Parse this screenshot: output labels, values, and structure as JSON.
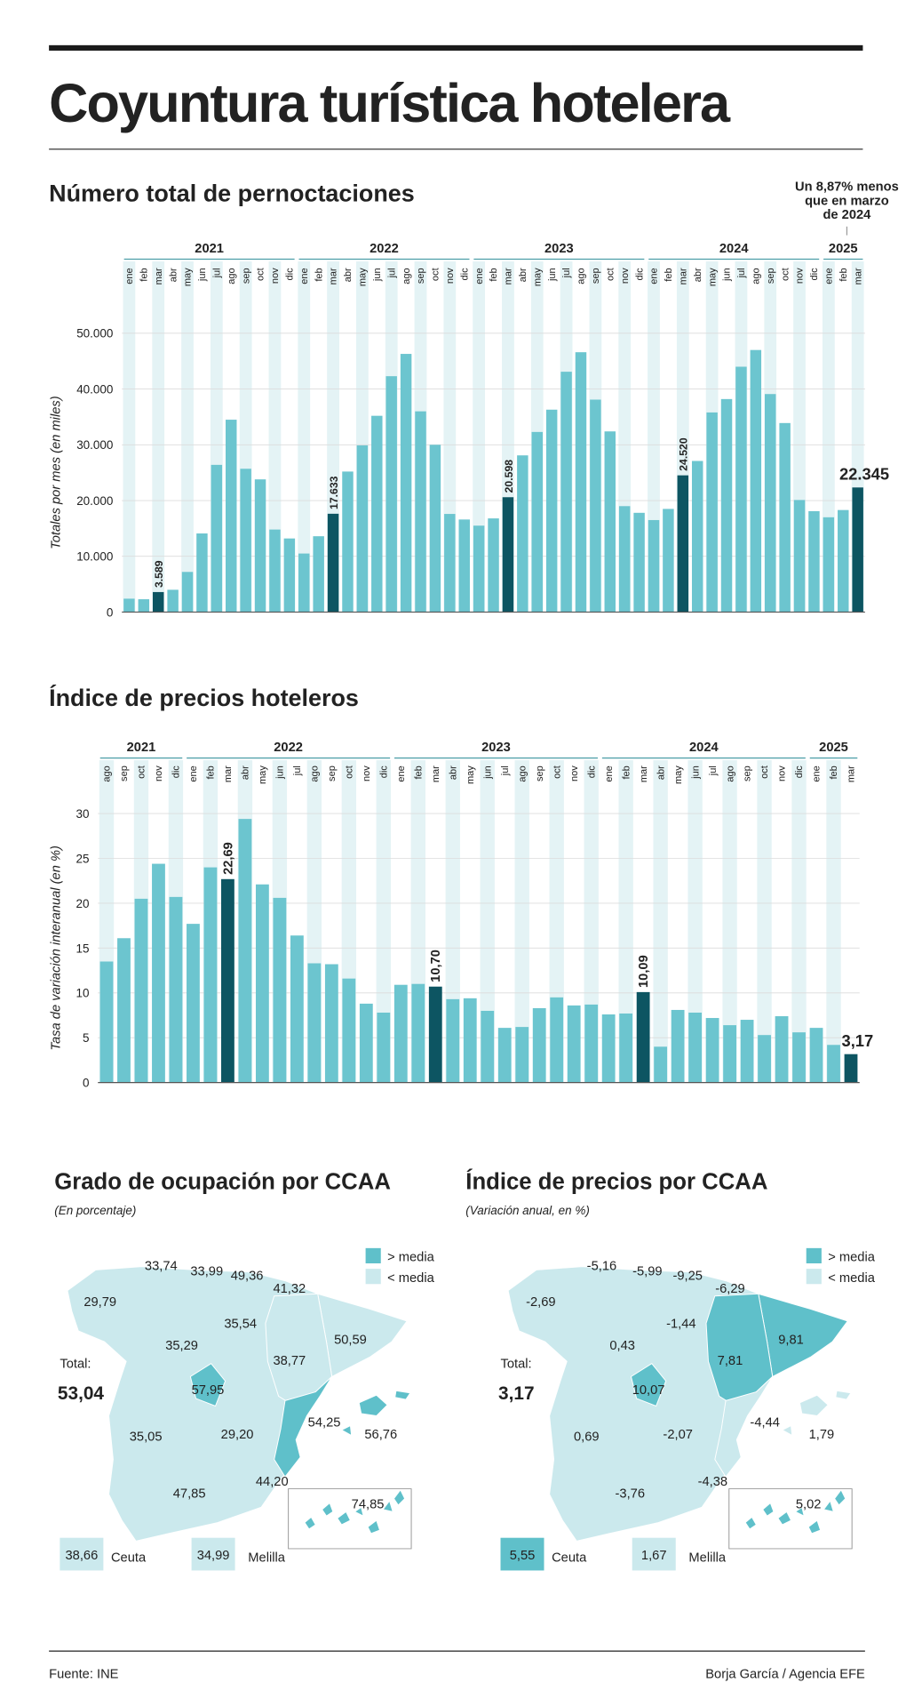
{
  "header": {
    "title": "Coyuntura turística hotelera"
  },
  "chart_data": [
    {
      "type": "bar",
      "title": "Número total de pernoctaciones",
      "y_label": "Totales por mes (en miles)",
      "annotation": [
        "Un 8,87% menos",
        "que en marzo",
        "de 2024"
      ],
      "groups": [
        {
          "label": "2021",
          "categories": [
            "ene",
            "feb",
            "mar",
            "abr",
            "may",
            "jun",
            "jul",
            "ago",
            "sep",
            "oct",
            "nov",
            "dic"
          ]
        },
        {
          "label": "2022",
          "categories": [
            "ene",
            "feb",
            "mar",
            "abr",
            "may",
            "jun",
            "jul",
            "ago",
            "sep",
            "oct",
            "nov",
            "dic"
          ]
        },
        {
          "label": "2023",
          "categories": [
            "ene",
            "feb",
            "mar",
            "abr",
            "may",
            "jun",
            "jul",
            "ago",
            "sep",
            "oct",
            "nov",
            "dic"
          ]
        },
        {
          "label": "2024",
          "categories": [
            "ene",
            "feb",
            "mar",
            "abr",
            "may",
            "jun",
            "jul",
            "ago",
            "sep",
            "oct",
            "nov",
            "dic"
          ]
        },
        {
          "label": "2025",
          "categories": [
            "ene",
            "feb",
            "mar"
          ]
        }
      ],
      "values": [
        2400,
        2300,
        3589,
        4000,
        7200,
        14100,
        26400,
        34500,
        25700,
        23800,
        14800,
        13200,
        10500,
        13600,
        17633,
        25200,
        29900,
        35200,
        42300,
        46300,
        36000,
        30000,
        17600,
        16600,
        15500,
        16800,
        20598,
        28100,
        32300,
        36300,
        43100,
        46600,
        38100,
        32400,
        19000,
        17800,
        16500,
        18500,
        24520,
        27100,
        35800,
        38200,
        44000,
        47000,
        39100,
        33900,
        20100,
        18100,
        17000,
        18300,
        22345
      ],
      "value_labels": [
        null,
        null,
        "3.589",
        null,
        null,
        null,
        null,
        null,
        null,
        null,
        null,
        null,
        null,
        null,
        "17.633",
        null,
        null,
        null,
        null,
        null,
        null,
        null,
        null,
        null,
        null,
        null,
        "20.598",
        null,
        null,
        null,
        null,
        null,
        null,
        null,
        null,
        null,
        null,
        null,
        "24.520",
        null,
        null,
        null,
        null,
        null,
        null,
        null,
        null,
        null,
        null,
        null,
        "22.345"
      ],
      "color": "#6cc5cf",
      "highlight_color": "#0d5562",
      "ylim": [
        0,
        50000
      ],
      "yticks": [
        0,
        {
          "value": 10000,
          "label": "10.000"
        },
        {
          "value": 20000,
          "label": "20.000"
        },
        {
          "value": 30000,
          "label": "30.000"
        },
        {
          "value": 40000,
          "label": "40.000"
        },
        {
          "value": 50000,
          "label": "50.000"
        }
      ],
      "grid": true
    },
    {
      "type": "bar",
      "title": "Índice de precios hoteleros",
      "y_label": "Tasa de variación interanual (en %)",
      "groups": [
        {
          "label": "2021",
          "categories": [
            "ago",
            "sep",
            "oct",
            "nov",
            "dic"
          ]
        },
        {
          "label": "2022",
          "categories": [
            "ene",
            "feb",
            "mar",
            "abr",
            "may",
            "jun",
            "jul",
            "ago",
            "sep",
            "oct",
            "nov",
            "dic"
          ]
        },
        {
          "label": "2023",
          "categories": [
            "ene",
            "feb",
            "mar",
            "abr",
            "may",
            "jun",
            "jul",
            "ago",
            "sep",
            "oct",
            "nov",
            "dic"
          ]
        },
        {
          "label": "2024",
          "categories": [
            "ene",
            "feb",
            "mar",
            "abr",
            "may",
            "jun",
            "jul",
            "ago",
            "sep",
            "oct",
            "nov",
            "dic"
          ]
        },
        {
          "label": "2025",
          "categories": [
            "ene",
            "feb",
            "mar"
          ]
        }
      ],
      "values": [
        13.5,
        16.1,
        20.5,
        24.4,
        20.7,
        17.7,
        24.0,
        22.69,
        29.4,
        22.1,
        20.6,
        16.4,
        13.3,
        13.2,
        11.6,
        8.8,
        7.8,
        10.9,
        11.0,
        10.7,
        9.3,
        9.4,
        8.0,
        6.1,
        6.2,
        8.3,
        9.5,
        8.6,
        8.7,
        7.6,
        7.7,
        10.09,
        4.0,
        8.1,
        7.8,
        7.2,
        6.4,
        7.0,
        5.3,
        7.4,
        5.6,
        6.1,
        4.2,
        3.17
      ],
      "value_labels": [
        null,
        null,
        null,
        null,
        null,
        null,
        null,
        "22,69",
        null,
        null,
        null,
        null,
        null,
        null,
        null,
        null,
        null,
        null,
        null,
        "10,70",
        null,
        null,
        null,
        null,
        null,
        null,
        null,
        null,
        null,
        null,
        null,
        "10,09",
        null,
        null,
        null,
        null,
        null,
        null,
        null,
        null,
        null,
        null,
        null,
        "3,17"
      ],
      "color": "#6cc5cf",
      "highlight_color": "#0d5562",
      "ylim": [
        0,
        30
      ],
      "yticks": [
        0,
        5,
        10,
        15,
        20,
        25,
        30
      ],
      "grid": true
    }
  ],
  "maps": [
    {
      "title": "Grado de ocupación por CCAA",
      "subtitle": "(En porcentaje)",
      "legend": [
        "> media",
        "< media"
      ],
      "total_label": "Total:",
      "total": "53,04",
      "regions": [
        "29,79",
        "33,74",
        "33,99",
        "49,36",
        "41,32",
        "35,54",
        "50,59",
        "38,77",
        "35,29",
        "57,95",
        "35,05",
        "29,20",
        "54,25",
        "56,76",
        "44,20",
        "47,85",
        "74,85"
      ],
      "ceuta": {
        "name": "Ceuta",
        "value": "38,66"
      },
      "melilla": {
        "name": "Melilla",
        "value": "34,99"
      }
    },
    {
      "title": "Índice de precios por CCAA",
      "subtitle": "(Variación anual, en %)",
      "legend": [
        "> media",
        "< media"
      ],
      "total_label": "Total:",
      "total": "3,17",
      "regions": [
        "-2,69",
        "-5,16",
        "-5,99",
        "-9,25",
        "-6,29",
        "-1,44",
        "9,81",
        "7,81",
        "0,43",
        "10,07",
        "0,69",
        "-2,07",
        "-4,44",
        "1,79",
        "-4,38",
        "-3,76",
        "5,02"
      ],
      "ceuta": {
        "name": "Ceuta",
        "value": "5,55"
      },
      "melilla": {
        "name": "Melilla",
        "value": "1,67"
      }
    }
  ],
  "footer": {
    "source": "Fuente: INE",
    "credit": "Borja García / Agencia EFE"
  }
}
